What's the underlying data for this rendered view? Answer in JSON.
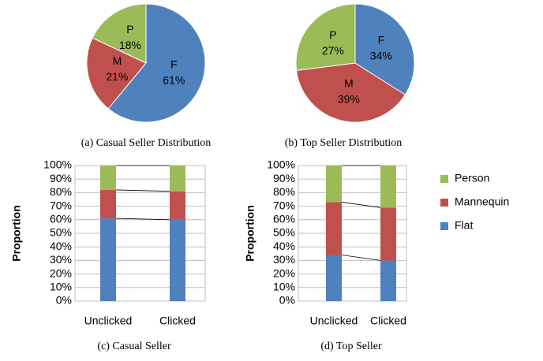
{
  "chart_data": [
    {
      "type": "pie",
      "title": "(a) Casual Seller Distribution",
      "categories": [
        "F",
        "M",
        "P"
      ],
      "values": [
        61,
        21,
        18
      ],
      "value_labels": [
        "61%",
        "21%",
        "18%"
      ],
      "colors": [
        "#4f81bd",
        "#c0504d",
        "#9bbb59"
      ]
    },
    {
      "type": "pie",
      "title": "(b) Top Seller Distribution",
      "categories": [
        "F",
        "M",
        "P"
      ],
      "values": [
        34,
        39,
        27
      ],
      "value_labels": [
        "34%",
        "39%",
        "27%"
      ],
      "colors": [
        "#4f81bd",
        "#c0504d",
        "#9bbb59"
      ]
    },
    {
      "type": "stacked_bar",
      "title": "(c) Casual Seller",
      "ylabel": "Proportion",
      "categories": [
        "Unclicked",
        "Clicked"
      ],
      "series": [
        {
          "color": "#4f81bd",
          "values": [
            61,
            60
          ]
        },
        {
          "color": "#c0504d",
          "values": [
            21,
            21
          ]
        },
        {
          "color": "#9bbb59",
          "values": [
            18,
            19
          ]
        }
      ],
      "ylim": [
        0,
        100
      ],
      "yticks": [
        {
          "value": 0,
          "label": "0%"
        },
        {
          "value": 10,
          "label": "10%"
        },
        {
          "value": 20,
          "label": "20%"
        },
        {
          "value": 30,
          "label": "30%"
        },
        {
          "value": 40,
          "label": "40%"
        },
        {
          "value": 50,
          "label": "50%"
        },
        {
          "value": 60,
          "label": "60%"
        },
        {
          "value": 70,
          "label": "70%"
        },
        {
          "value": 80,
          "label": "80%"
        },
        {
          "value": 90,
          "label": "90%"
        },
        {
          "value": 100,
          "label": "100%"
        }
      ],
      "grid": true
    },
    {
      "type": "stacked_bar",
      "title": "(d) Top Seller",
      "ylabel": "Proportion",
      "categories": [
        "Unclicked",
        "Clicked"
      ],
      "series": [
        {
          "name": "Flat",
          "color": "#4f81bd",
          "values": [
            34,
            30
          ]
        },
        {
          "name": "Mannequin",
          "color": "#c0504d",
          "values": [
            39,
            39
          ]
        },
        {
          "name": "Person",
          "color": "#9bbb59",
          "values": [
            27,
            31
          ]
        }
      ],
      "ylim": [
        0,
        100
      ],
      "yticks": [
        {
          "value": 0,
          "label": "0%"
        },
        {
          "value": 10,
          "label": "10%"
        },
        {
          "value": 20,
          "label": "20%"
        },
        {
          "value": 30,
          "label": "30%"
        },
        {
          "value": 40,
          "label": "40%"
        },
        {
          "value": 50,
          "label": "50%"
        },
        {
          "value": 60,
          "label": "60%"
        },
        {
          "value": 70,
          "label": "70%"
        },
        {
          "value": 80,
          "label": "80%"
        },
        {
          "value": 90,
          "label": "90%"
        },
        {
          "value": 100,
          "label": "100%"
        }
      ],
      "grid": true,
      "legend": "right"
    }
  ]
}
